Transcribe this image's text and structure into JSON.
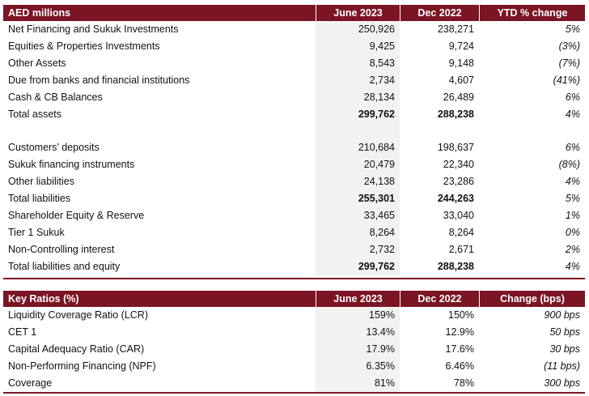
{
  "balance": {
    "headers": [
      "AED millions",
      "June 2023",
      "Dec 2022",
      "YTD % change"
    ],
    "rows": [
      {
        "label": "Net Financing and Sukuk Investments",
        "jun": "250,926",
        "dec": "238,271",
        "chg": "5%"
      },
      {
        "label": "Equities & Properties Investments",
        "jun": "9,425",
        "dec": "9,724",
        "chg": "(3%)"
      },
      {
        "label": "Other Assets",
        "jun": "8,543",
        "dec": "9,148",
        "chg": "(7%)"
      },
      {
        "label": "Due from banks and financial institutions",
        "jun": "2,734",
        "dec": "4,607",
        "chg": "(41%)"
      },
      {
        "label": "Cash & CB Balances",
        "jun": "28,134",
        "dec": "26,489",
        "chg": "6%"
      },
      {
        "label": "Total assets",
        "jun": "299,762",
        "dec": "288,238",
        "chg": "4%"
      },
      {
        "label": "",
        "jun": "",
        "dec": "",
        "chg": ""
      },
      {
        "label": "Customers’ deposits",
        "jun": "210,684",
        "dec": "198,637",
        "chg": "6%"
      },
      {
        "label": "Sukuk financing instruments",
        "jun": "20,479",
        "dec": "22,340",
        "chg": "(8%)"
      },
      {
        "label": "Other liabilities",
        "jun": "24,138",
        "dec": "23,286",
        "chg": "4%"
      },
      {
        "label": "Total liabilities",
        "jun": "255,301",
        "dec": "244,263",
        "chg": "5%"
      },
      {
        "label": "Shareholder Equity & Reserve",
        "jun": "33,465",
        "dec": "33,040",
        "chg": "1%"
      },
      {
        "label": "Tier 1 Sukuk",
        "jun": "8,264",
        "dec": "8,264",
        "chg": "0%"
      },
      {
        "label": "Non-Controlling interest",
        "jun": "2,732",
        "dec": "2,671",
        "chg": "2%"
      },
      {
        "label": "Total liabilities and equity",
        "jun": "299,762",
        "dec": "288,238",
        "chg": "4%"
      }
    ]
  },
  "ratios": {
    "headers": [
      "Key Ratios (%)",
      "June 2023",
      "Dec 2022",
      "Change (bps)"
    ],
    "rows": [
      {
        "label": "Liquidity Coverage Ratio (LCR)",
        "jun": "159%",
        "dec": "150%",
        "chg": "900 bps"
      },
      {
        "label": "CET 1",
        "jun": "13.4%",
        "dec": "12.9%",
        "chg": "50 bps"
      },
      {
        "label": "Capital Adequacy Ratio (CAR)",
        "jun": "17.9%",
        "dec": "17.6%",
        "chg": "30 bps"
      },
      {
        "label": "Non-Performing Financing (NPF)",
        "jun": "6.35%",
        "dec": "6.46%",
        "chg": "(11 bps)"
      },
      {
        "label": "Coverage",
        "jun": "81%",
        "dec": "78%",
        "chg": "300 bps"
      }
    ]
  },
  "colors": {
    "header_bg": "#7b1523",
    "shade": "#f2f2f2"
  }
}
